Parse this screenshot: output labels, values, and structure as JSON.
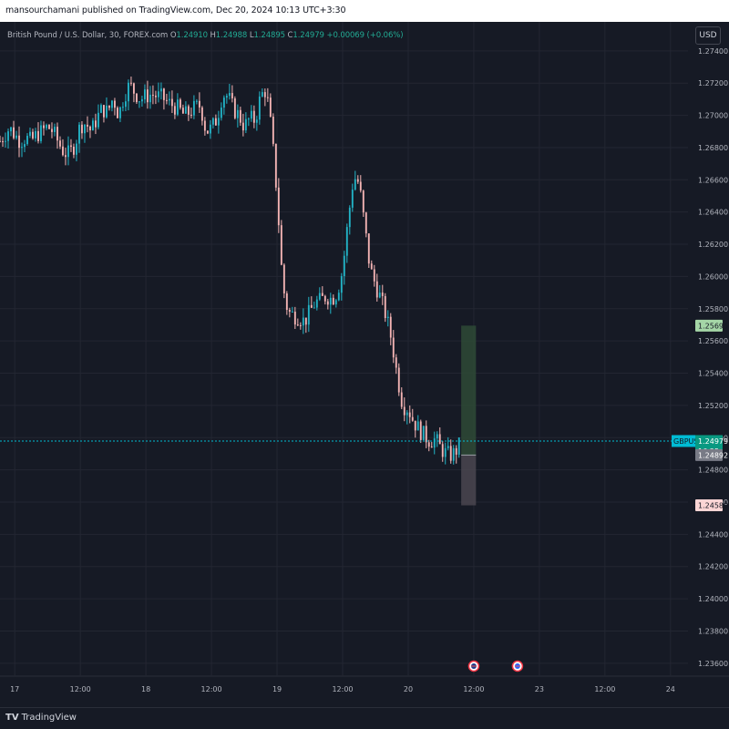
{
  "header": {
    "published_line": "mansourchamani published on TradingView.com, Dec 20, 2024 10:13 UTC+3:30"
  },
  "legend": {
    "symbol": "British Pound / U.S. Dollar, 30, FOREX.com",
    "open_label": "O",
    "open": "1.24910",
    "high_label": "H",
    "high": "1.24988",
    "low_label": "L",
    "low": "1.24895",
    "close_label": "C",
    "close": "1.24979",
    "change": "+0.00069 (+0.06%)"
  },
  "currency_button": "USD",
  "footer": {
    "logo_mark": "TV",
    "logo_text": "TradingView"
  },
  "colors": {
    "up": "#26a69a",
    "down": "#ef9a9a",
    "up_candle": "#22b5c8",
    "down_candle": "#f5b5b5",
    "profit_zone": "#2e4a36",
    "loss_zone": "#4a4650",
    "accent": "#00bcd4",
    "background": "#161a25",
    "grid": "#232632"
  },
  "chart_data": {
    "type": "candlestick",
    "symbol": "GBPUSD",
    "timeframe": "30",
    "ylim": [
      1.2352,
      1.2758
    ],
    "y_ticks": [
      "1.27400",
      "1.27200",
      "1.27000",
      "1.26800",
      "1.26600",
      "1.26400",
      "1.26200",
      "1.26000",
      "1.25800",
      "1.25600",
      "1.25400",
      "1.25200",
      "1.25000",
      "1.24800",
      "1.24600",
      "1.24400",
      "1.24200",
      "1.24000",
      "1.23800",
      "1.23600"
    ],
    "x_ticks": [
      "17",
      "12:00",
      "18",
      "12:00",
      "19",
      "12:00",
      "20",
      "12:00",
      "23",
      "12:00",
      "24"
    ],
    "x_tick_hours": [
      0,
      12,
      24,
      36,
      48,
      60,
      72,
      84,
      96,
      108,
      120
    ],
    "xlim_hours": [
      -2.7,
      123.2
    ],
    "price_path": [
      [
        -2.7,
        1.2684
      ],
      [
        -1,
        1.2692
      ],
      [
        0,
        1.2688
      ],
      [
        1,
        1.2684
      ],
      [
        2,
        1.2686
      ],
      [
        3,
        1.2684
      ],
      [
        4,
        1.2688
      ],
      [
        5,
        1.269
      ],
      [
        6,
        1.2693
      ],
      [
        7,
        1.269
      ],
      [
        8,
        1.2683
      ],
      [
        9,
        1.2677
      ],
      [
        10,
        1.2676
      ],
      [
        11,
        1.2682
      ],
      [
        12,
        1.2694
      ],
      [
        13,
        1.2695
      ],
      [
        14,
        1.269
      ],
      [
        15,
        1.2698
      ],
      [
        16,
        1.2704
      ],
      [
        17,
        1.2702
      ],
      [
        18,
        1.2711
      ],
      [
        19,
        1.27
      ],
      [
        20,
        1.2712
      ],
      [
        21,
        1.2719
      ],
      [
        22,
        1.2714
      ],
      [
        23,
        1.271
      ],
      [
        24,
        1.2712
      ],
      [
        25,
        1.2713
      ],
      [
        26,
        1.2712
      ],
      [
        27,
        1.2711
      ],
      [
        28,
        1.2708
      ],
      [
        29,
        1.2706
      ],
      [
        30,
        1.2704
      ],
      [
        31,
        1.27
      ],
      [
        32,
        1.2702
      ],
      [
        33,
        1.2705
      ],
      [
        34,
        1.2706
      ],
      [
        35,
        1.269
      ],
      [
        36,
        1.2692
      ],
      [
        37,
        1.2698
      ],
      [
        38,
        1.2713
      ],
      [
        39,
        1.2712
      ],
      [
        40,
        1.2704
      ],
      [
        41,
        1.27
      ],
      [
        42,
        1.2693
      ],
      [
        43,
        1.2698
      ],
      [
        44,
        1.2697
      ],
      [
        45,
        1.2712
      ],
      [
        46,
        1.2716
      ],
      [
        47,
        1.269
      ],
      [
        48,
        1.265
      ],
      [
        49,
        1.2595
      ],
      [
        50,
        1.2578
      ],
      [
        51,
        1.2576
      ],
      [
        52,
        1.2575
      ],
      [
        53,
        1.2572
      ],
      [
        54,
        1.2578
      ],
      [
        55,
        1.2584
      ],
      [
        56,
        1.2585
      ],
      [
        57,
        1.2588
      ],
      [
        58,
        1.2586
      ],
      [
        59,
        1.259
      ],
      [
        60,
        1.2604
      ],
      [
        61,
        1.2635
      ],
      [
        62,
        1.2662
      ],
      [
        63,
        1.2658
      ],
      [
        64,
        1.2632
      ],
      [
        65,
        1.2605
      ],
      [
        66,
        1.2595
      ],
      [
        67,
        1.2586
      ],
      [
        68,
        1.2575
      ],
      [
        69,
        1.256
      ],
      [
        70,
        1.2538
      ],
      [
        71,
        1.252
      ],
      [
        72,
        1.2518
      ],
      [
        73,
        1.251
      ],
      [
        74,
        1.2505
      ],
      [
        75,
        1.2501
      ],
      [
        76,
        1.2498
      ],
      [
        77,
        1.2499
      ],
      [
        78,
        1.2493
      ],
      [
        79,
        1.249
      ],
      [
        80,
        1.2489
      ],
      [
        81,
        1.2493
      ],
      [
        81.7,
        1.2498
      ]
    ],
    "last_price": 1.24979,
    "last_label": "GBPUSD",
    "last_price_label": "1.24979",
    "countdown": "16:25",
    "position": {
      "take_profit": 1.25695,
      "take_profit_label": "1.25695",
      "entry": 1.24892,
      "entry_label": "1.24892",
      "stop_loss": 1.2458,
      "stop_loss_label": "1.24580",
      "start_hour": 81.7,
      "end_hour": 84.4
    },
    "event_markers": [
      {
        "hour": 84.0,
        "icon": "flag-uk-icon"
      },
      {
        "hour": 92.0,
        "icon": "flag-us-icon"
      }
    ]
  }
}
